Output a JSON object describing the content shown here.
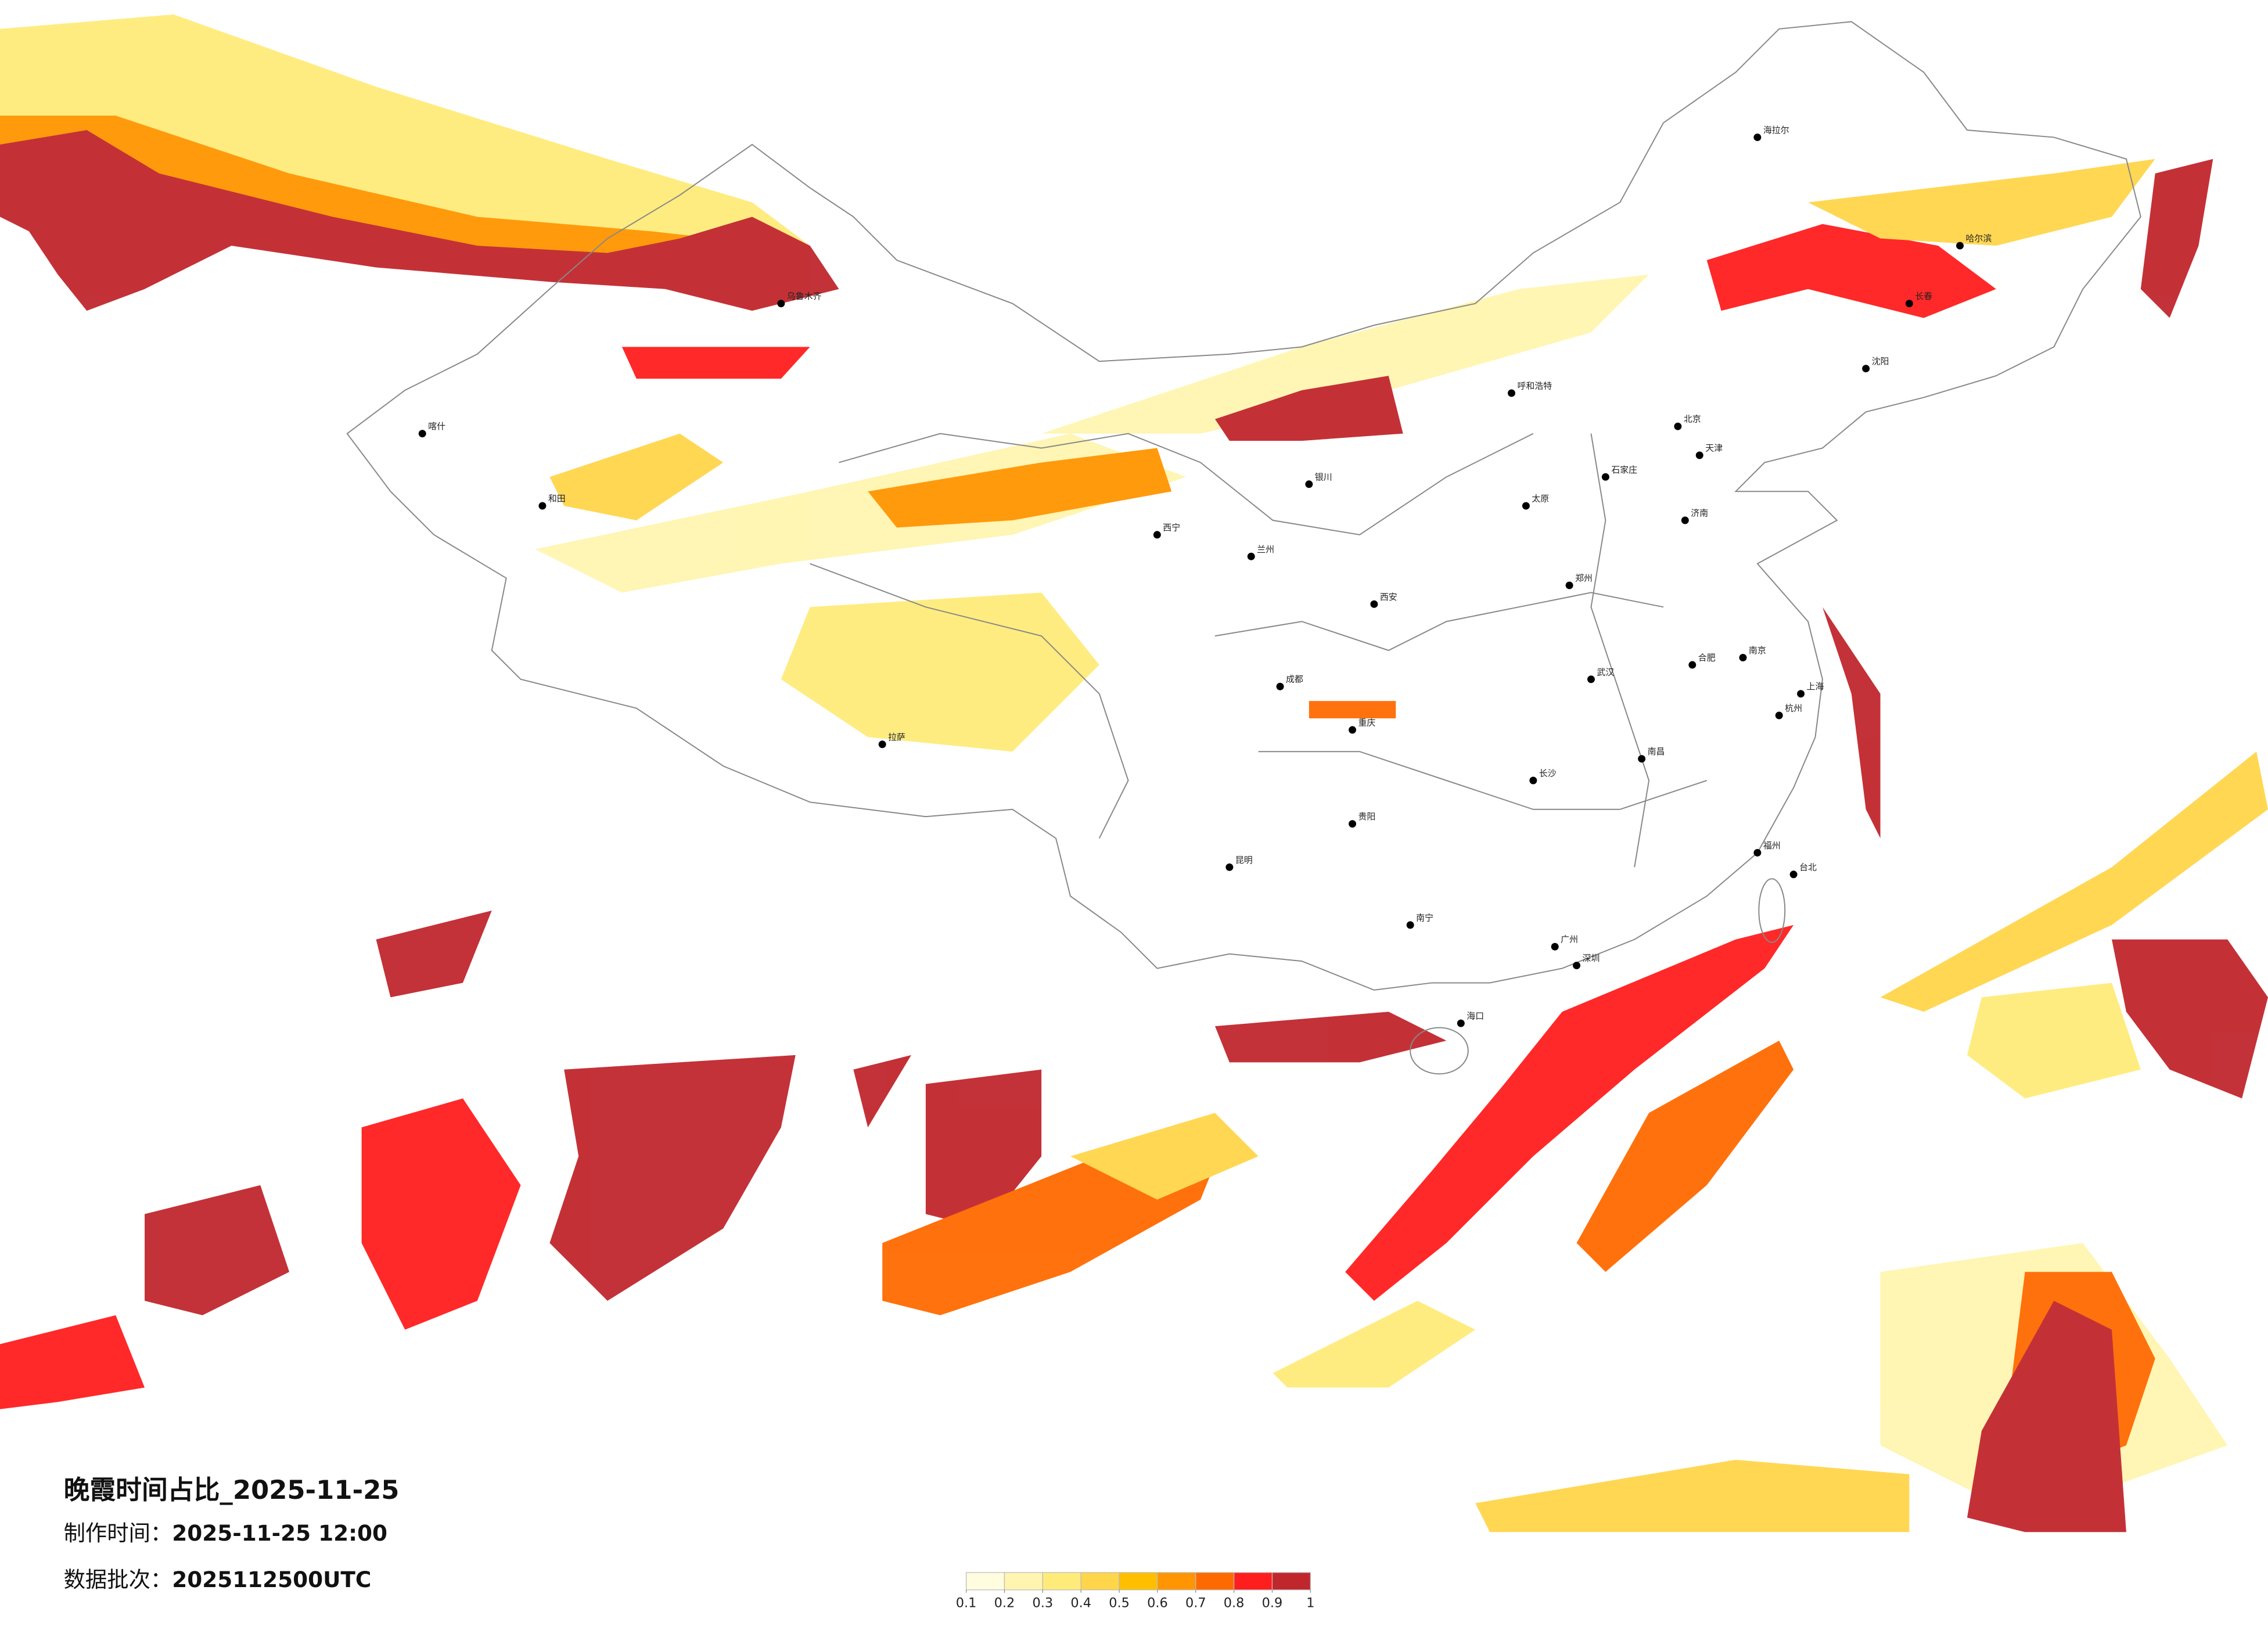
{
  "title": "晚霞时间占比_2025-11-25",
  "meta": [
    {
      "label": "制作时间：",
      "value": "2025-11-25 12:00"
    },
    {
      "label": "数据批次：",
      "value": "2025112500UTC"
    }
  ],
  "colorbar": {
    "ticks": [
      0.1,
      0.2,
      0.3,
      0.4,
      0.5,
      0.6,
      0.7,
      0.8,
      0.9,
      1
    ],
    "colors": [
      "#fffce0",
      "#fff5b0",
      "#ffeb7a",
      "#ffd54a",
      "#ffbf00",
      "#ff9500",
      "#ff6a00",
      "#ff1e1e",
      "#c0272d"
    ]
  },
  "cities": [
    "北京",
    "天津",
    "上海",
    "重庆",
    "成都",
    "西安",
    "武汉",
    "广州",
    "深圳",
    "南京",
    "杭州",
    "长沙",
    "昆明",
    "贵阳",
    "南宁",
    "兰州",
    "西宁",
    "银川",
    "呼和浩特",
    "哈尔滨",
    "长春",
    "沈阳",
    "乌鲁木齐",
    "拉萨",
    "海口",
    "郑州",
    "济南",
    "石家庄",
    "太原",
    "福州",
    "南昌",
    "合肥",
    "台北",
    "喀什",
    "和田",
    "海拉尔"
  ]
}
